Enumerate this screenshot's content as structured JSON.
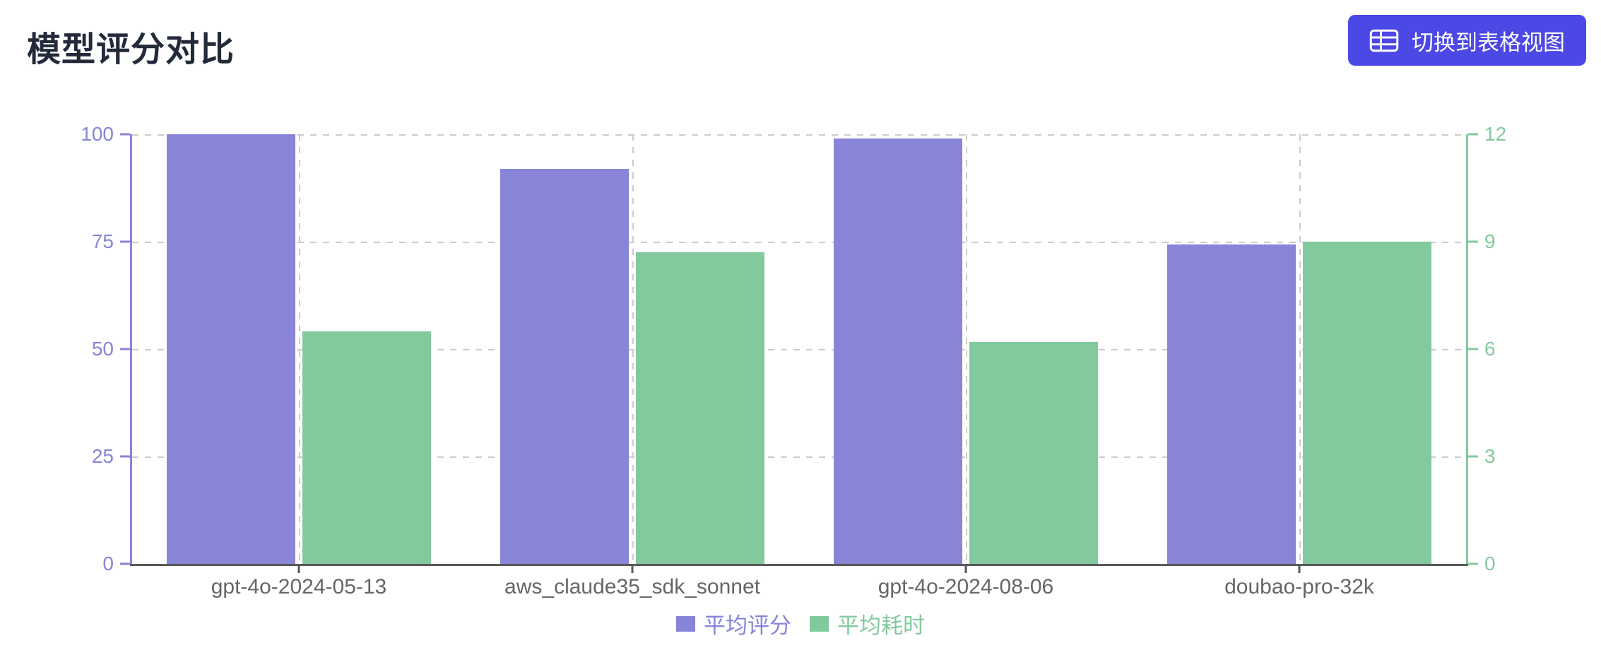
{
  "header": {
    "title": "模型评分对比",
    "view_toggle_button": {
      "label": "切换到表格视图",
      "icon": "table-icon",
      "background_color": "#4b48e5",
      "text_color": "#ffffff"
    }
  },
  "colors": {
    "score_series": "#8884d8",
    "time_series": "#82ca9d",
    "grid": "#cccccc",
    "x_axis": "#595959",
    "x_labels": "#666666",
    "title_text": "#232b3b"
  },
  "chart_data": {
    "type": "bar",
    "title": "模型评分对比",
    "categories": [
      "gpt-4o-2024-05-13",
      "aws_claude35_sdk_sonnet",
      "gpt-4o-2024-08-06",
      "doubao-pro-32k"
    ],
    "series": [
      {
        "key": "score",
        "name": "平均评分",
        "axis": "left",
        "color": "#8884d8",
        "values": [
          100,
          92,
          99,
          74.4
        ]
      },
      {
        "key": "time",
        "name": "平均耗时",
        "axis": "right",
        "color": "#82ca9d",
        "values": [
          6.5,
          8.7,
          6.2,
          9
        ]
      }
    ],
    "left_axis": {
      "ticks": [
        0,
        25,
        50,
        75,
        100
      ],
      "min": 0,
      "max": 100,
      "color": "#8884d8"
    },
    "right_axis": {
      "ticks": [
        0,
        3,
        6,
        9,
        12
      ],
      "min": 0,
      "max": 12,
      "color": "#82ca9d"
    },
    "grid": {
      "horizontal": true,
      "vertical": true,
      "style": "dashed"
    },
    "legend_position": "bottom-center",
    "legend": [
      "平均评分",
      "平均耗时"
    ]
  }
}
